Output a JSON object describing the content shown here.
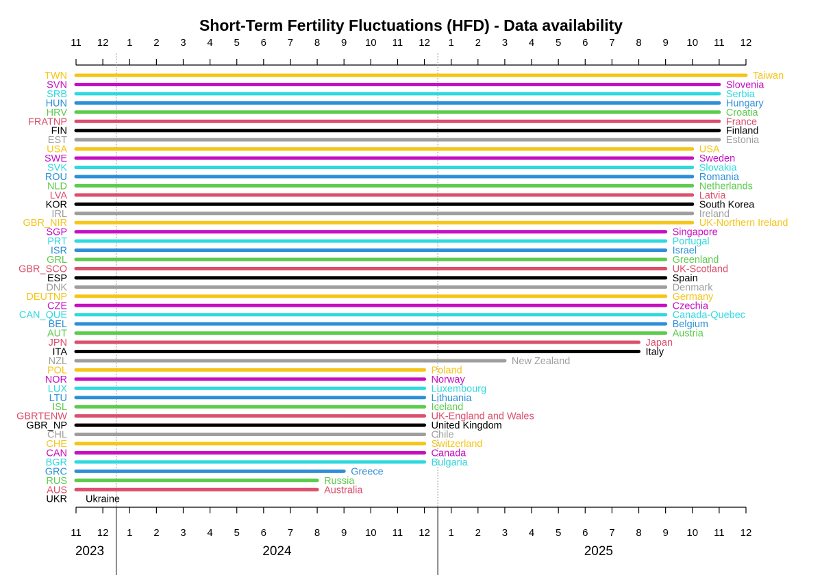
{
  "chart_data": {
    "type": "bar",
    "orientation": "horizontal-range",
    "title": "Short-Term Fertility Fluctuations (HFD) - Data availability",
    "x_start": "2023-11",
    "x_end": "2025-12",
    "x_tick_labels": [
      "11",
      "12",
      "1",
      "2",
      "3",
      "4",
      "5",
      "6",
      "7",
      "8",
      "9",
      "10",
      "11",
      "12",
      "1",
      "2",
      "3",
      "4",
      "5",
      "6",
      "7",
      "8",
      "9",
      "10",
      "11",
      "12"
    ],
    "year_labels": [
      "2023",
      "2024",
      "2025"
    ],
    "grid": false,
    "colors": {
      "yellow": "#F5C518",
      "magenta": "#C60FC2",
      "cyan": "#2ED9DE",
      "blue": "#2E8FD8",
      "green": "#5CCB4C",
      "red": "#DB4F6C",
      "black": "#000000",
      "gray": "#9E9E9E"
    },
    "series": [
      {
        "code": "TWN",
        "name": "Taiwan",
        "end": "2025-12",
        "color": "yellow"
      },
      {
        "code": "SVN",
        "name": "Slovenia",
        "end": "2025-11",
        "color": "magenta"
      },
      {
        "code": "SRB",
        "name": "Serbia",
        "end": "2025-11",
        "color": "cyan"
      },
      {
        "code": "HUN",
        "name": "Hungary",
        "end": "2025-11",
        "color": "blue"
      },
      {
        "code": "HRV",
        "name": "Croatia",
        "end": "2025-11",
        "color": "green"
      },
      {
        "code": "FRATNP",
        "name": "France",
        "end": "2025-11",
        "color": "red"
      },
      {
        "code": "FIN",
        "name": "Finland",
        "end": "2025-11",
        "color": "black"
      },
      {
        "code": "EST",
        "name": "Estonia",
        "end": "2025-11",
        "color": "gray"
      },
      {
        "code": "USA",
        "name": "USA",
        "end": "2025-10",
        "color": "yellow"
      },
      {
        "code": "SWE",
        "name": "Sweden",
        "end": "2025-10",
        "color": "magenta"
      },
      {
        "code": "SVK",
        "name": "Slovakia",
        "end": "2025-10",
        "color": "cyan"
      },
      {
        "code": "ROU",
        "name": "Romania",
        "end": "2025-10",
        "color": "blue"
      },
      {
        "code": "NLD",
        "name": "Netherlands",
        "end": "2025-10",
        "color": "green"
      },
      {
        "code": "LVA",
        "name": "Latvia",
        "end": "2025-10",
        "color": "red"
      },
      {
        "code": "KOR",
        "name": "South Korea",
        "end": "2025-10",
        "color": "black"
      },
      {
        "code": "IRL",
        "name": "Ireland",
        "end": "2025-10",
        "color": "gray"
      },
      {
        "code": "GBR_NIR",
        "name": "UK-Northern Ireland",
        "end": "2025-10",
        "color": "yellow"
      },
      {
        "code": "SGP",
        "name": "Singapore",
        "end": "2025-09",
        "color": "magenta"
      },
      {
        "code": "PRT",
        "name": "Portugal",
        "end": "2025-09",
        "color": "cyan"
      },
      {
        "code": "ISR",
        "name": "Israel",
        "end": "2025-09",
        "color": "blue"
      },
      {
        "code": "GRL",
        "name": "Greenland",
        "end": "2025-09",
        "color": "green"
      },
      {
        "code": "GBR_SCO",
        "name": "UK-Scotland",
        "end": "2025-09",
        "color": "red"
      },
      {
        "code": "ESP",
        "name": "Spain",
        "end": "2025-09",
        "color": "black"
      },
      {
        "code": "DNK",
        "name": "Denmark",
        "end": "2025-09",
        "color": "gray"
      },
      {
        "code": "DEUTNP",
        "name": "Germany",
        "end": "2025-09",
        "color": "yellow"
      },
      {
        "code": "CZE",
        "name": "Czechia",
        "end": "2025-09",
        "color": "magenta"
      },
      {
        "code": "CAN_QUE",
        "name": "Canada-Quebec",
        "end": "2025-09",
        "color": "cyan"
      },
      {
        "code": "BEL",
        "name": "Belgium",
        "end": "2025-09",
        "color": "blue"
      },
      {
        "code": "AUT",
        "name": "Austria",
        "end": "2025-09",
        "color": "green"
      },
      {
        "code": "JPN",
        "name": "Japan",
        "end": "2025-08",
        "color": "red"
      },
      {
        "code": "ITA",
        "name": "Italy",
        "end": "2025-08",
        "color": "black"
      },
      {
        "code": "NZL",
        "name": "New Zealand",
        "end": "2025-03",
        "color": "gray"
      },
      {
        "code": "POL",
        "name": "Poland",
        "end": "2024-12",
        "color": "yellow"
      },
      {
        "code": "NOR",
        "name": "Norway",
        "end": "2024-12",
        "color": "magenta"
      },
      {
        "code": "LUX",
        "name": "Luxembourg",
        "end": "2024-12",
        "color": "cyan"
      },
      {
        "code": "LTU",
        "name": "Lithuania",
        "end": "2024-12",
        "color": "blue"
      },
      {
        "code": "ISL",
        "name": "Iceland",
        "end": "2024-12",
        "color": "green"
      },
      {
        "code": "GBRTENW",
        "name": "UK-England and Wales",
        "end": "2024-12",
        "color": "red"
      },
      {
        "code": "GBR_NP",
        "name": "United Kingdom",
        "end": "2024-12",
        "color": "black"
      },
      {
        "code": "CHL",
        "name": "Chile",
        "end": "2024-12",
        "color": "gray"
      },
      {
        "code": "CHE",
        "name": "Switzerland",
        "end": "2024-12",
        "color": "yellow"
      },
      {
        "code": "CAN",
        "name": "Canada",
        "end": "2024-12",
        "color": "magenta"
      },
      {
        "code": "BGR",
        "name": "Bulgaria",
        "end": "2024-12",
        "color": "cyan"
      },
      {
        "code": "GRC",
        "name": "Greece",
        "end": "2024-09",
        "color": "blue"
      },
      {
        "code": "RUS",
        "name": "Russia",
        "end": "2024-08",
        "color": "green"
      },
      {
        "code": "AUS",
        "name": "Australia",
        "end": "2024-08",
        "color": "red"
      },
      {
        "code": "UKR",
        "name": "Ukraine",
        "end": null,
        "color": "black"
      }
    ]
  }
}
